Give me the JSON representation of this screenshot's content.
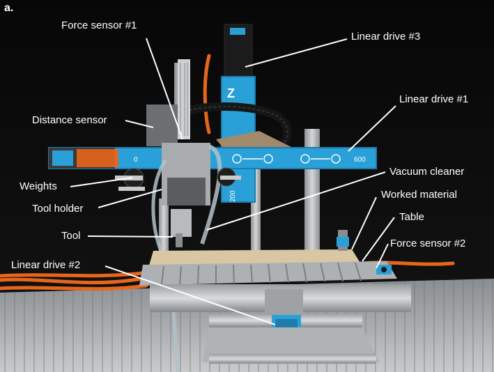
{
  "figure": {
    "panel_label": "a.",
    "labels": {
      "force_sensor_1": "Force sensor #1",
      "linear_drive_3": "Linear drive #3",
      "linear_drive_1": "Linear drive #1",
      "distance_sensor": "Distance sensor",
      "weights": "Weights",
      "vacuum_cleaner": "Vacuum cleaner",
      "worked_material": "Worked material",
      "tool_holder": "Tool holder",
      "table": "Table",
      "tool": "Tool",
      "force_sensor_2": "Force sensor #2",
      "linear_drive_2": "Linear drive #2"
    },
    "scale_text": {
      "x_start": "0",
      "x_end": "600",
      "y_end": "200",
      "z_axis": "Z"
    },
    "colors": {
      "background": "#0a0a0a",
      "drive_blue": "#2aa0d8",
      "cable_orange": "#e8661c",
      "aluminium": "#b9bcbf",
      "wood": "#d9c7a4",
      "label_text": "#ffffff",
      "leader_line": "#ffffff"
    }
  }
}
